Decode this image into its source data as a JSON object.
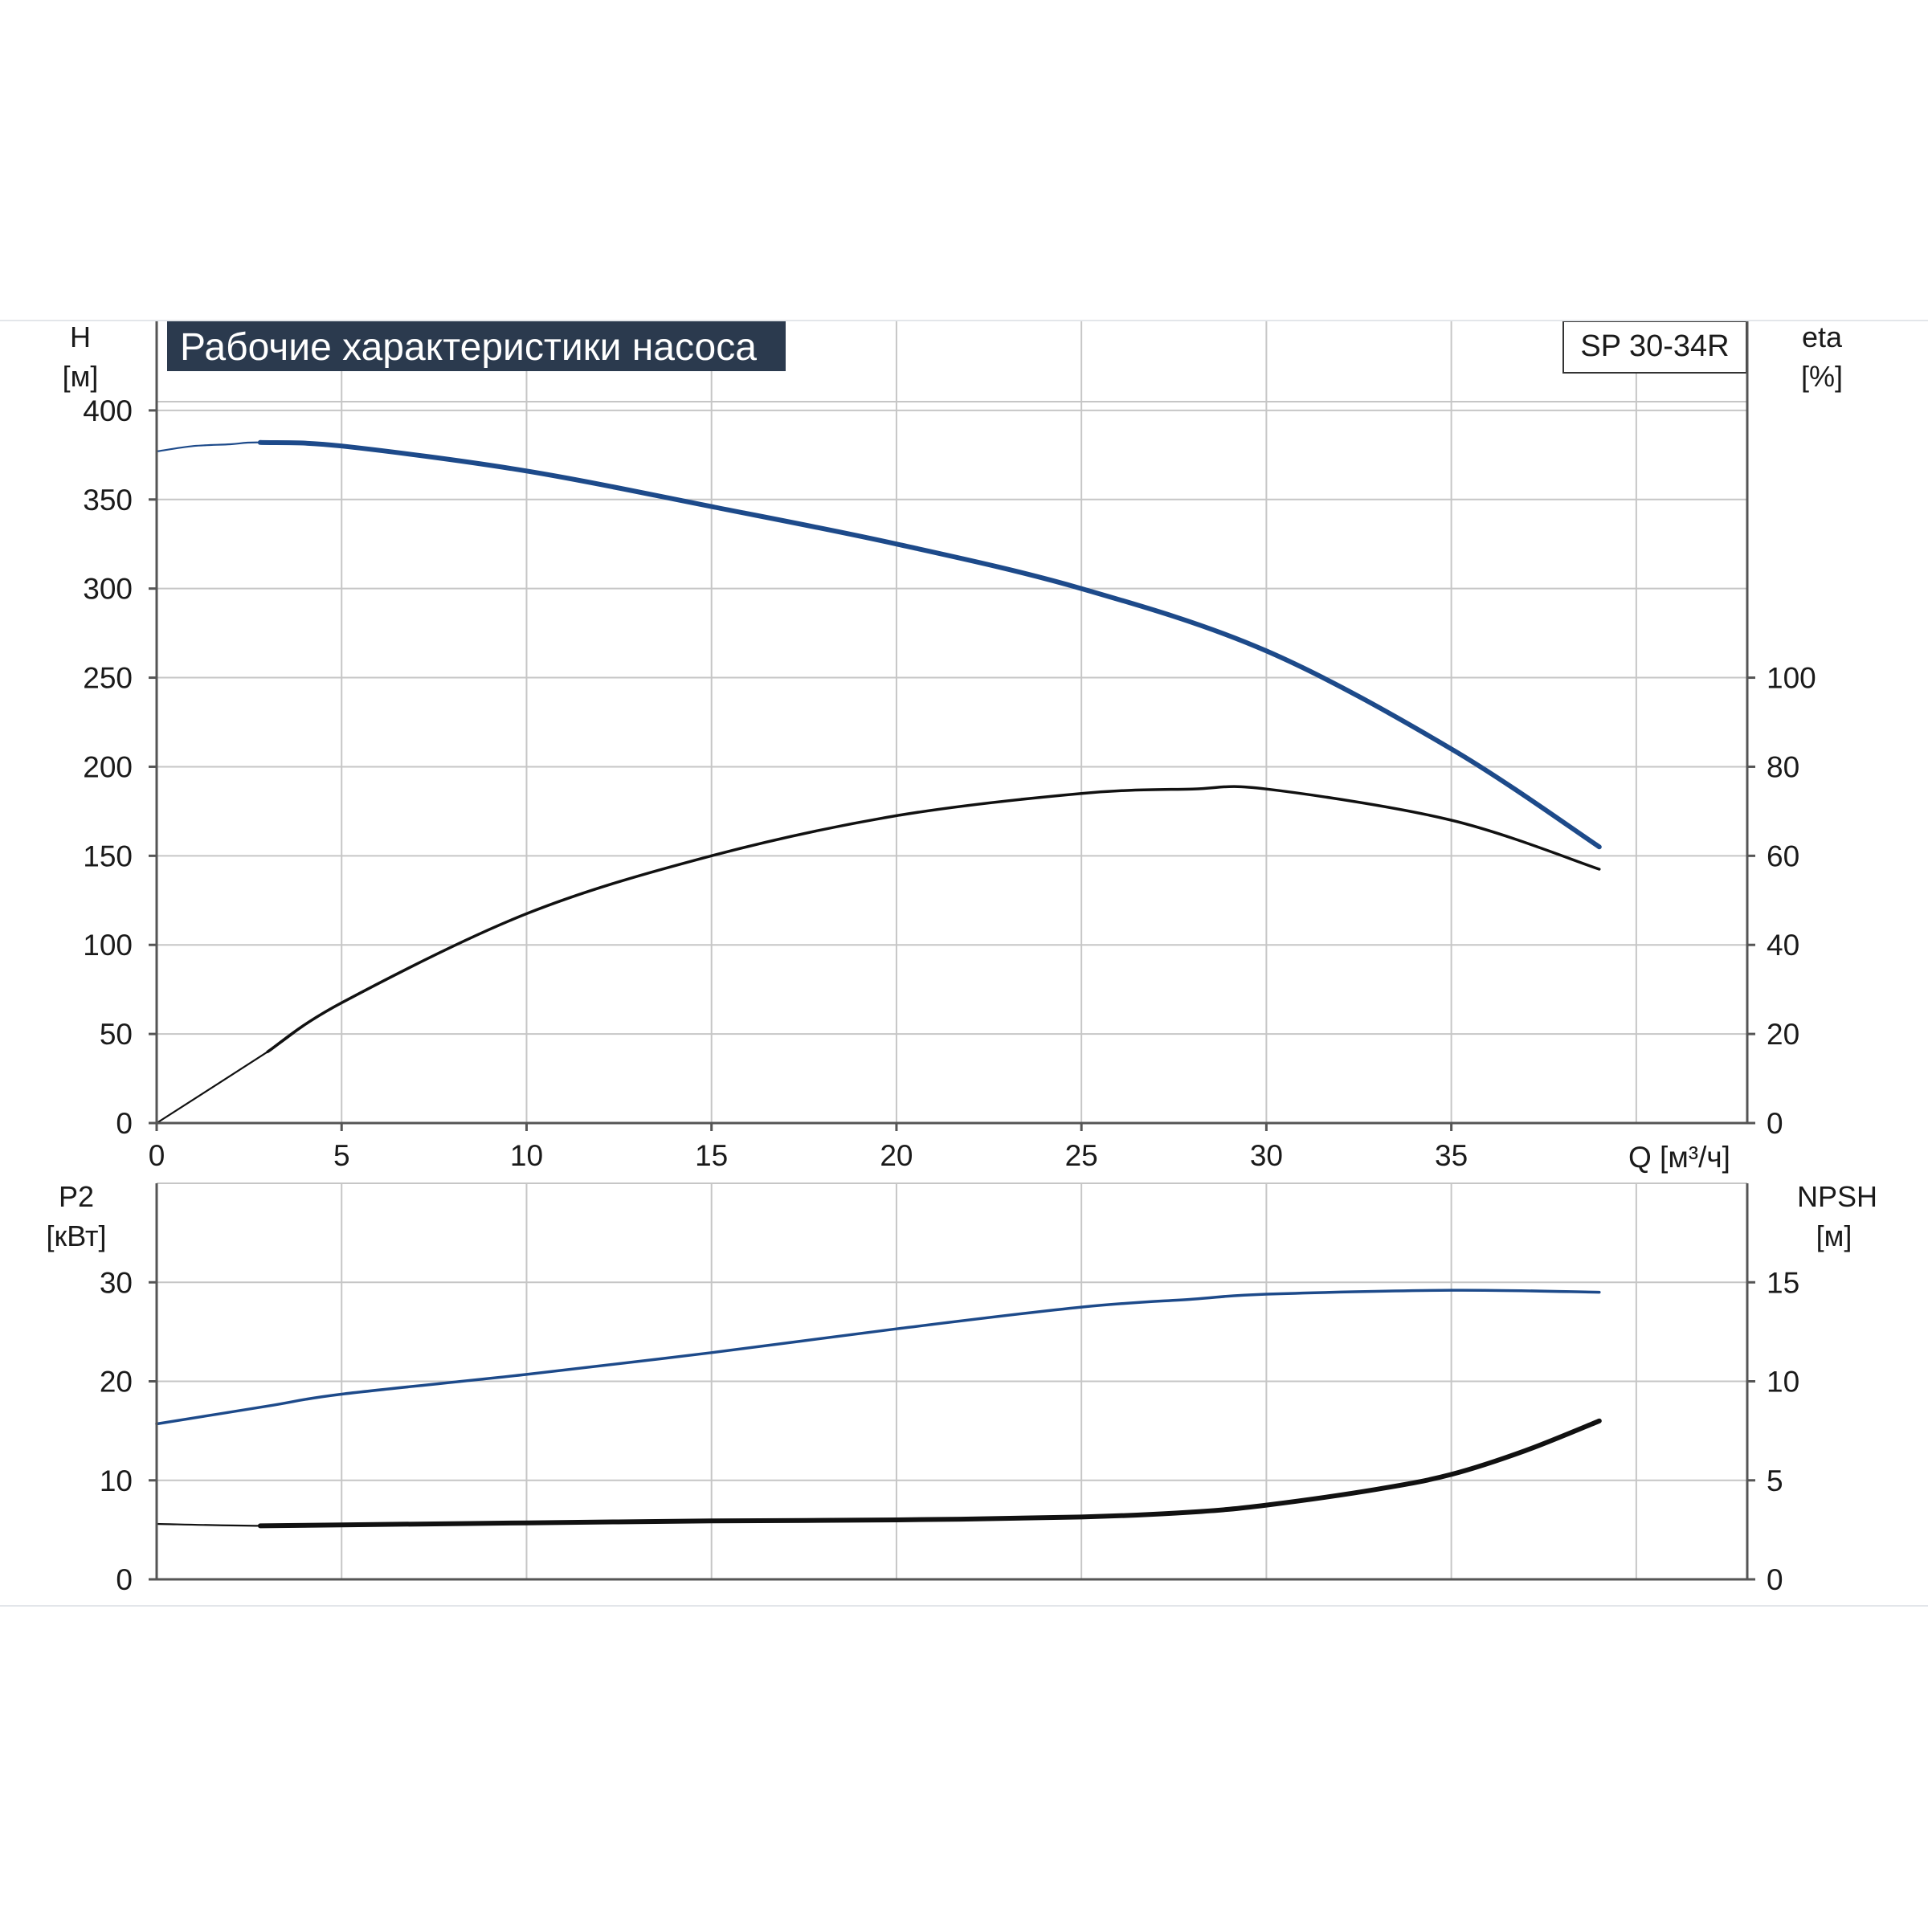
{
  "chart_data": [
    {
      "type": "line",
      "title": "Рабочие характеристики насоса",
      "model": "SP 30-34R",
      "xlabel": "Q [м³/ч]",
      "xlim": [
        0,
        43
      ],
      "x_ticks": [
        "0",
        "5",
        "10",
        "15",
        "20",
        "25",
        "30",
        "35"
      ],
      "x_tick_values": [
        0,
        5,
        10,
        15,
        20,
        25,
        30,
        35
      ],
      "y_left": {
        "label": "H",
        "unit": "[м]",
        "lim": [
          0,
          450
        ],
        "ticks": [
          "0",
          "50",
          "100",
          "150",
          "200",
          "250",
          "300",
          "350",
          "400"
        ],
        "tick_values": [
          0,
          50,
          100,
          150,
          200,
          250,
          300,
          350,
          400
        ]
      },
      "y_right": {
        "label": "eta",
        "unit": "[%]",
        "lim": [
          0,
          180
        ],
        "ticks": [
          "0",
          "20",
          "40",
          "60",
          "80",
          "100"
        ],
        "tick_values": [
          0,
          20,
          40,
          60,
          80,
          100
        ]
      },
      "grid": true,
      "series": [
        {
          "axis": "left",
          "color": "#1d4a8a",
          "style": "thick",
          "bold_from": 2.8,
          "x": [
            0,
            1,
            2,
            2.8,
            5,
            10,
            15,
            20,
            25,
            30,
            35,
            39
          ],
          "values": [
            377,
            380,
            381,
            382,
            380,
            366,
            346,
            325,
            300,
            265,
            210,
            155
          ]
        },
        {
          "axis": "right",
          "color": "#111111",
          "style": "thin",
          "bold_from": 3,
          "x": [
            0,
            3,
            5,
            10,
            15,
            20,
            25,
            28,
            30,
            35,
            39
          ],
          "values": [
            0,
            16,
            27,
            47,
            60,
            69,
            74,
            75,
            75,
            68,
            57
          ]
        }
      ]
    },
    {
      "type": "line",
      "xlim": [
        0,
        43
      ],
      "y_left": {
        "label": "P2",
        "unit": "[кВт]",
        "lim": [
          0,
          40
        ],
        "ticks": [
          "0",
          "10",
          "20",
          "30"
        ],
        "tick_values": [
          0,
          10,
          20,
          30
        ]
      },
      "y_right": {
        "label": "NPSH",
        "unit": "[м]",
        "lim": [
          0,
          20
        ],
        "ticks": [
          "0",
          "5",
          "10",
          "15"
        ],
        "tick_values": [
          0,
          5,
          10,
          15
        ]
      },
      "grid": true,
      "series": [
        {
          "axis": "left",
          "color": "#1d4a8a",
          "style": "thin",
          "bold_from": 0,
          "x": [
            0,
            3,
            5,
            10,
            15,
            20,
            25,
            28,
            30,
            35,
            39
          ],
          "values": [
            15.7,
            17.5,
            18.7,
            20.7,
            22.9,
            25.3,
            27.5,
            28.3,
            28.8,
            29.2,
            29.0
          ]
        },
        {
          "axis": "right",
          "color": "#111111",
          "style": "thick",
          "bold_from": 2.8,
          "x": [
            0,
            2.8,
            5,
            10,
            15,
            20,
            25,
            28,
            30,
            33,
            35,
            37,
            39
          ],
          "values": [
            2.8,
            2.7,
            2.75,
            2.85,
            2.95,
            3.0,
            3.15,
            3.4,
            3.75,
            4.55,
            5.3,
            6.5,
            8.0
          ]
        }
      ]
    }
  ]
}
